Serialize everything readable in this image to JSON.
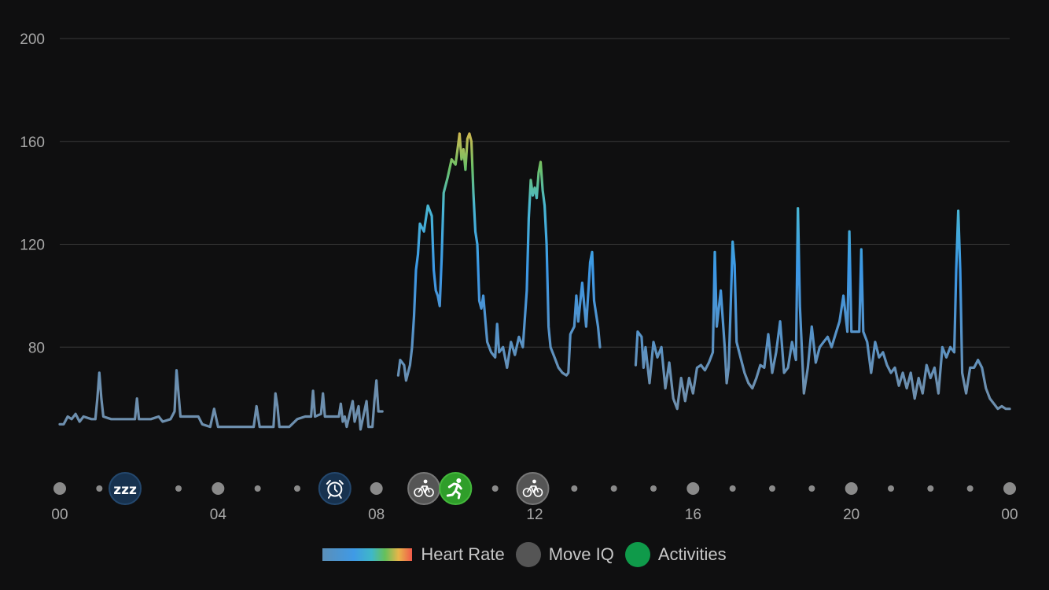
{
  "colors": {
    "background": "#0f0f10",
    "grid": "#3a3a3a",
    "hr_low": "#6d8fae",
    "hr_mid": "#3b97e6",
    "hr_green": "#6cc167",
    "hr_high": "#e8b54a",
    "move_iq": "#555555",
    "activity": "#0f9a4a",
    "sleep": "#17324f",
    "timeline_dot": "#8a8a8a"
  },
  "chart_data": {
    "type": "line",
    "y_ticks": [
      "80",
      "120",
      "160",
      "200"
    ],
    "ylim": [
      40,
      200
    ],
    "x_ticks": [
      "00",
      "04",
      "08",
      "12",
      "16",
      "20",
      "00"
    ],
    "xlim": [
      0,
      24
    ],
    "grid": true,
    "series": [
      {
        "name": "Heart Rate",
        "segments": [
          [
            [
              0.0,
              50
            ],
            [
              0.1,
              50
            ],
            [
              0.2,
              53
            ],
            [
              0.3,
              52
            ],
            [
              0.4,
              54
            ],
            [
              0.5,
              51
            ],
            [
              0.6,
              53
            ],
            [
              0.8,
              52
            ],
            [
              0.9,
              52
            ],
            [
              0.95,
              60
            ],
            [
              1.0,
              70
            ],
            [
              1.05,
              60
            ],
            [
              1.1,
              53
            ],
            [
              1.3,
              52
            ],
            [
              1.6,
              52
            ],
            [
              1.9,
              52
            ],
            [
              1.95,
              60
            ],
            [
              2.0,
              52
            ],
            [
              2.3,
              52
            ],
            [
              2.5,
              53
            ],
            [
              2.6,
              51
            ],
            [
              2.8,
              52
            ],
            [
              2.9,
              55
            ],
            [
              2.95,
              71
            ],
            [
              3.0,
              62
            ],
            [
              3.05,
              53
            ],
            [
              3.3,
              53
            ],
            [
              3.5,
              53
            ],
            [
              3.6,
              50
            ],
            [
              3.8,
              49
            ],
            [
              3.9,
              56
            ],
            [
              4.0,
              49
            ],
            [
              4.5,
              49
            ],
            [
              4.9,
              49
            ],
            [
              4.97,
              57
            ],
            [
              5.05,
              49
            ],
            [
              5.4,
              49
            ],
            [
              5.45,
              62
            ],
            [
              5.5,
              57
            ],
            [
              5.55,
              49
            ],
            [
              5.8,
              49
            ],
            [
              6.0,
              52
            ],
            [
              6.2,
              53
            ],
            [
              6.35,
              53
            ],
            [
              6.4,
              63
            ],
            [
              6.45,
              53
            ],
            [
              6.6,
              54
            ],
            [
              6.65,
              62
            ],
            [
              6.7,
              53
            ],
            [
              6.9,
              53
            ],
            [
              7.05,
              53
            ],
            [
              7.1,
              58
            ],
            [
              7.15,
              51
            ],
            [
              7.2,
              53
            ],
            [
              7.25,
              49
            ],
            [
              7.4,
              59
            ],
            [
              7.45,
              51
            ],
            [
              7.55,
              57
            ],
            [
              7.6,
              48
            ],
            [
              7.75,
              59
            ],
            [
              7.8,
              49
            ],
            [
              7.9,
              49
            ],
            [
              7.95,
              59
            ],
            [
              8.0,
              67
            ],
            [
              8.05,
              55
            ],
            [
              8.1,
              55
            ],
            [
              8.15,
              55
            ]
          ],
          [
            [
              8.55,
              69
            ],
            [
              8.6,
              75
            ],
            [
              8.65,
              74
            ],
            [
              8.7,
              73
            ],
            [
              8.75,
              67
            ],
            [
              8.85,
              73
            ],
            [
              8.9,
              80
            ],
            [
              8.95,
              92
            ],
            [
              9.0,
              110
            ],
            [
              9.05,
              116
            ],
            [
              9.1,
              128
            ],
            [
              9.2,
              125
            ],
            [
              9.3,
              135
            ],
            [
              9.4,
              131
            ],
            [
              9.45,
              110
            ],
            [
              9.5,
              102
            ],
            [
              9.55,
              100
            ],
            [
              9.6,
              96
            ],
            [
              9.65,
              115
            ],
            [
              9.7,
              140
            ],
            [
              9.8,
              146
            ],
            [
              9.9,
              153
            ],
            [
              10.0,
              151
            ],
            [
              10.05,
              157
            ],
            [
              10.1,
              163
            ],
            [
              10.15,
              153
            ],
            [
              10.2,
              157
            ],
            [
              10.25,
              149
            ],
            [
              10.3,
              161
            ],
            [
              10.35,
              163
            ],
            [
              10.4,
              160
            ],
            [
              10.45,
              140
            ],
            [
              10.5,
              125
            ],
            [
              10.55,
              120
            ],
            [
              10.6,
              98
            ],
            [
              10.65,
              95
            ],
            [
              10.7,
              100
            ],
            [
              10.8,
              82
            ],
            [
              10.9,
              78
            ],
            [
              11.0,
              76
            ],
            [
              11.05,
              89
            ],
            [
              11.1,
              78
            ],
            [
              11.2,
              80
            ],
            [
              11.3,
              72
            ],
            [
              11.4,
              82
            ],
            [
              11.5,
              77
            ],
            [
              11.6,
              84
            ],
            [
              11.7,
              80
            ],
            [
              11.8,
              102
            ],
            [
              11.85,
              130
            ],
            [
              11.9,
              145
            ],
            [
              11.95,
              139
            ],
            [
              12.0,
              142
            ],
            [
              12.05,
              138
            ],
            [
              12.1,
              148
            ],
            [
              12.15,
              152
            ],
            [
              12.2,
              141
            ],
            [
              12.25,
              135
            ],
            [
              12.3,
              120
            ],
            [
              12.35,
              88
            ],
            [
              12.4,
              80
            ],
            [
              12.5,
              76
            ],
            [
              12.6,
              72
            ],
            [
              12.7,
              70
            ],
            [
              12.8,
              69
            ],
            [
              12.85,
              70
            ],
            [
              12.9,
              85
            ],
            [
              13.0,
              88
            ],
            [
              13.05,
              100
            ],
            [
              13.1,
              90
            ],
            [
              13.2,
              105
            ],
            [
              13.3,
              88
            ],
            [
              13.4,
              113
            ],
            [
              13.45,
              117
            ],
            [
              13.5,
              98
            ],
            [
              13.6,
              88
            ],
            [
              13.65,
              80
            ]
          ],
          [
            [
              14.55,
              73
            ],
            [
              14.6,
              86
            ],
            [
              14.7,
              84
            ],
            [
              14.75,
              72
            ],
            [
              14.8,
              80
            ],
            [
              14.9,
              66
            ],
            [
              15.0,
              82
            ],
            [
              15.1,
              76
            ],
            [
              15.2,
              80
            ],
            [
              15.3,
              64
            ],
            [
              15.4,
              74
            ],
            [
              15.5,
              60
            ],
            [
              15.6,
              56
            ],
            [
              15.7,
              68
            ],
            [
              15.8,
              59
            ],
            [
              15.9,
              68
            ],
            [
              16.0,
              62
            ],
            [
              16.1,
              72
            ],
            [
              16.2,
              73
            ],
            [
              16.3,
              71
            ],
            [
              16.4,
              74
            ],
            [
              16.5,
              78
            ],
            [
              16.55,
              117
            ],
            [
              16.6,
              88
            ],
            [
              16.7,
              102
            ],
            [
              16.8,
              80
            ],
            [
              16.85,
              66
            ],
            [
              16.9,
              72
            ],
            [
              16.95,
              95
            ],
            [
              17.0,
              121
            ],
            [
              17.05,
              112
            ],
            [
              17.1,
              82
            ],
            [
              17.2,
              76
            ],
            [
              17.3,
              70
            ],
            [
              17.4,
              66
            ],
            [
              17.5,
              64
            ],
            [
              17.6,
              68
            ],
            [
              17.7,
              73
            ],
            [
              17.8,
              72
            ],
            [
              17.9,
              85
            ],
            [
              18.0,
              70
            ],
            [
              18.1,
              78
            ],
            [
              18.2,
              90
            ],
            [
              18.3,
              70
            ],
            [
              18.4,
              72
            ],
            [
              18.5,
              82
            ],
            [
              18.6,
              75
            ],
            [
              18.65,
              134
            ],
            [
              18.7,
              96
            ],
            [
              18.8,
              62
            ],
            [
              18.9,
              72
            ],
            [
              19.0,
              88
            ],
            [
              19.1,
              74
            ],
            [
              19.2,
              80
            ],
            [
              19.3,
              82
            ],
            [
              19.4,
              84
            ],
            [
              19.5,
              80
            ],
            [
              19.6,
              85
            ],
            [
              19.7,
              90
            ],
            [
              19.8,
              100
            ],
            [
              19.9,
              86
            ],
            [
              19.95,
              125
            ],
            [
              20.0,
              86
            ],
            [
              20.1,
              86
            ],
            [
              20.2,
              86
            ],
            [
              20.25,
              118
            ],
            [
              20.3,
              86
            ],
            [
              20.4,
              82
            ],
            [
              20.5,
              70
            ],
            [
              20.6,
              82
            ],
            [
              20.7,
              76
            ],
            [
              20.8,
              78
            ],
            [
              20.9,
              73
            ],
            [
              21.0,
              70
            ],
            [
              21.1,
              72
            ],
            [
              21.2,
              65
            ],
            [
              21.3,
              70
            ],
            [
              21.4,
              64
            ],
            [
              21.5,
              70
            ],
            [
              21.6,
              60
            ],
            [
              21.7,
              68
            ],
            [
              21.8,
              62
            ],
            [
              21.9,
              73
            ],
            [
              22.0,
              68
            ],
            [
              22.1,
              72
            ],
            [
              22.2,
              62
            ],
            [
              22.3,
              80
            ],
            [
              22.4,
              76
            ],
            [
              22.5,
              80
            ],
            [
              22.6,
              78
            ],
            [
              22.65,
              110
            ],
            [
              22.7,
              133
            ],
            [
              22.75,
              110
            ],
            [
              22.8,
              70
            ],
            [
              22.9,
              62
            ],
            [
              23.0,
              72
            ],
            [
              23.1,
              72
            ],
            [
              23.2,
              75
            ],
            [
              23.3,
              72
            ],
            [
              23.4,
              64
            ],
            [
              23.5,
              60
            ],
            [
              23.6,
              58
            ],
            [
              23.7,
              56
            ],
            [
              23.8,
              57
            ],
            [
              23.9,
              56
            ],
            [
              24.0,
              56
            ]
          ]
        ]
      }
    ],
    "timeline": {
      "dots": [
        {
          "x": 0,
          "size": "large"
        },
        {
          "x": 1,
          "size": "small"
        },
        {
          "x": 3,
          "size": "small"
        },
        {
          "x": 4,
          "size": "large"
        },
        {
          "x": 5,
          "size": "small"
        },
        {
          "x": 6,
          "size": "small"
        },
        {
          "x": 8,
          "size": "large"
        },
        {
          "x": 11,
          "size": "small"
        },
        {
          "x": 13,
          "size": "small"
        },
        {
          "x": 14,
          "size": "small"
        },
        {
          "x": 15,
          "size": "small"
        },
        {
          "x": 16,
          "size": "large"
        },
        {
          "x": 17,
          "size": "small"
        },
        {
          "x": 18,
          "size": "small"
        },
        {
          "x": 19,
          "size": "small"
        },
        {
          "x": 20,
          "size": "large"
        },
        {
          "x": 21,
          "size": "small"
        },
        {
          "x": 22,
          "size": "small"
        },
        {
          "x": 23,
          "size": "small"
        },
        {
          "x": 24,
          "size": "large"
        }
      ],
      "events": [
        {
          "x": 1.65,
          "kind": "sleep",
          "icon": "sleep-zzz-icon",
          "label": "zzz"
        },
        {
          "x": 6.95,
          "kind": "wake",
          "icon": "alarm-clock-icon"
        },
        {
          "x": 9.2,
          "kind": "move_iq",
          "icon": "bicycle-icon"
        },
        {
          "x": 10.0,
          "kind": "activity",
          "icon": "running-icon"
        },
        {
          "x": 11.95,
          "kind": "move_iq",
          "icon": "bicycle-icon"
        }
      ]
    },
    "legend": {
      "placement": "bottom-center",
      "items": [
        {
          "key": "hr",
          "label": "Heart Rate"
        },
        {
          "key": "move_iq",
          "label": "Move IQ"
        },
        {
          "key": "activity",
          "label": "Activities"
        }
      ]
    }
  }
}
